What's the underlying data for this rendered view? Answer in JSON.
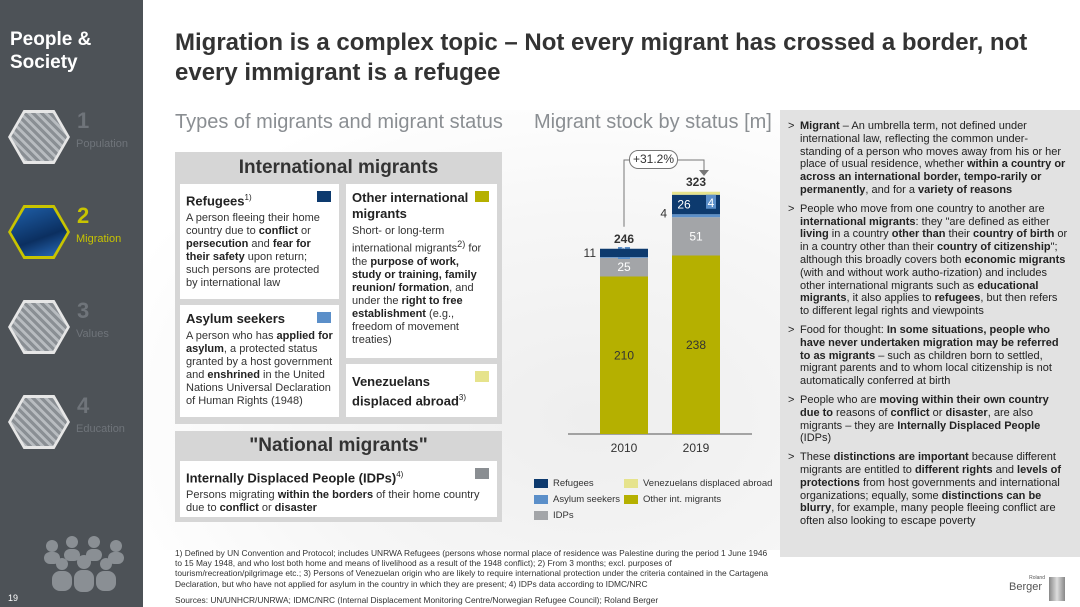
{
  "sidebar": {
    "title": "People & Society",
    "items": [
      {
        "num": "1",
        "label": "Population"
      },
      {
        "num": "2",
        "label": "Migration"
      },
      {
        "num": "3",
        "label": "Values"
      },
      {
        "num": "4",
        "label": "Education"
      }
    ],
    "page_number": "19"
  },
  "title": "Migration is a complex topic – Not every migrant has crossed a border, not every immigrant is a refugee",
  "left_section_title": "Types of migrants and migrant status",
  "chart_section_title": "Migrant stock by status [m]",
  "international": {
    "heading": "International migrants",
    "refugees": {
      "title": "Refugees",
      "note": "1)",
      "text_html": "A person fleeing their home country due to <b>conflict</b> or <b>persecution</b> and <b>fear for their safety</b> upon return; such persons are protected by international law",
      "color": "#0d3a6e"
    },
    "asylum": {
      "title": "Asylum seekers",
      "text_html": "A person who has <b>applied for asylum</b>, a protected status granted by a host government and <b>enshrined</b> in the United Nations Universal Declaration of Human Rights (1948)",
      "color": "#5b8fc9"
    },
    "other": {
      "title": "Other international migrants",
      "text_html": "Short- or long-term international migrants<sup>2)</sup> for the <b>purpose of work, study or training, family reunion/ formation</b>, and under the <b>right to free establishment</b> (e.g., freedom of movement treaties)",
      "color": "#b5b000"
    },
    "venezuelans": {
      "title": "Venezuelans displaced abroad",
      "note": "3)",
      "color": "#e6e38c"
    }
  },
  "national": {
    "heading": "\"National migrants\"",
    "idps": {
      "title": "Internally Displaced People (IDPs)",
      "note": "4)",
      "text_html": "Persons migrating <b>within the borders</b> of their home country due to <b>conflict</b> or <b>disaster</b>",
      "color": "#8a8e92"
    }
  },
  "chart_data": {
    "type": "bar",
    "stacked": true,
    "categories": [
      "2010",
      "2019"
    ],
    "series": [
      {
        "name": "Other int. migrants",
        "values": [
          210,
          238
        ],
        "color": "#b5b000"
      },
      {
        "name": "IDPs",
        "values": [
          25,
          51
        ],
        "color": "#a3a5a8"
      },
      {
        "name": "Asylum seekers",
        "values": [
          1,
          4
        ],
        "color": "#5b8fc9"
      },
      {
        "name": "Refugees",
        "values": [
          11,
          26
        ],
        "color": "#0d3a6e"
      },
      {
        "name": "Venezuelans displaced abroad",
        "values": [
          0,
          4
        ],
        "color": "#e6e38c"
      }
    ],
    "totals": [
      246,
      323
    ],
    "growth_label": "+31.2%",
    "legend": {
      "left": [
        "Refugees",
        "Asylum seekers",
        "IDPs"
      ],
      "right": [
        "Venezuelans displaced abroad",
        "Other int. migrants"
      ]
    }
  },
  "notes": [
    "<b>Migrant</b> – An umbrella term, not defined under international law, reflecting the common under-standing of a person who moves away from his or her place of usual residence, whether <b>within a country or across an international border, tempo-rarily or permanently</b>, and for a <b>variety of reasons</b>",
    "People who move from one country to another are <b>international migrants</b>: they \"are defined as either <b>living</b> in a country <b>other than</b> their <b>country of birth</b> or in a country other than their <b>country of citizenship</b>\"; although this broadly covers both <b>economic migrants</b> (with and without work autho-rization) and includes other international migrants such as <b>educational migrants</b>, it also applies to <b>refugees</b>, but then refers to different legal rights and viewpoints",
    "Food for thought: <b>In some situations, people who have never undertaken migration may be referred to as migrants</b> – such as children born to settled, migrant parents and to whom local citizenship is not automatically conferred at birth",
    "People who are <b>moving within their own country due to</b> reasons of <b>conflict</b> or <b>disaster</b>, are also migrants – they are <b>Internally Displaced People</b> (IDPs)",
    "These <b>distinctions are important</b> because different migrants are entitled to <b>different rights</b> and <b>levels of protections</b> from host governments and international organizations; equally, some <b>distinctions can be blurry</b>, for example, many people fleeing conflict are often also looking to escape poverty"
  ],
  "footnotes": "1) Defined by UN Convention and Protocol; includes UNRWA Refugees (persons whose normal place of residence was Palestine during the period 1 June 1946 to 15 May 1948, and who lost both home and means of livelihood as a result of the 1948 conflict); 2) From 3 months; excl. purposes of tourism/recreation/pilgrimage etc.; 3) Persons of Venezuelan origin who are likely to require international protection under the criteria contained in the Cartagena Declaration, but who have not applied for asylum in the country in which they are present; 4) IDPs data according to IDMC/NRC",
  "sources": "Sources: UN/UNHCR/UNRWA; IDMC/NRC (Internal Displacement Monitoring Centre/Norwegian Refugee Council); Roland Berger",
  "logo": {
    "small": "Roland",
    "text": "Berger"
  }
}
